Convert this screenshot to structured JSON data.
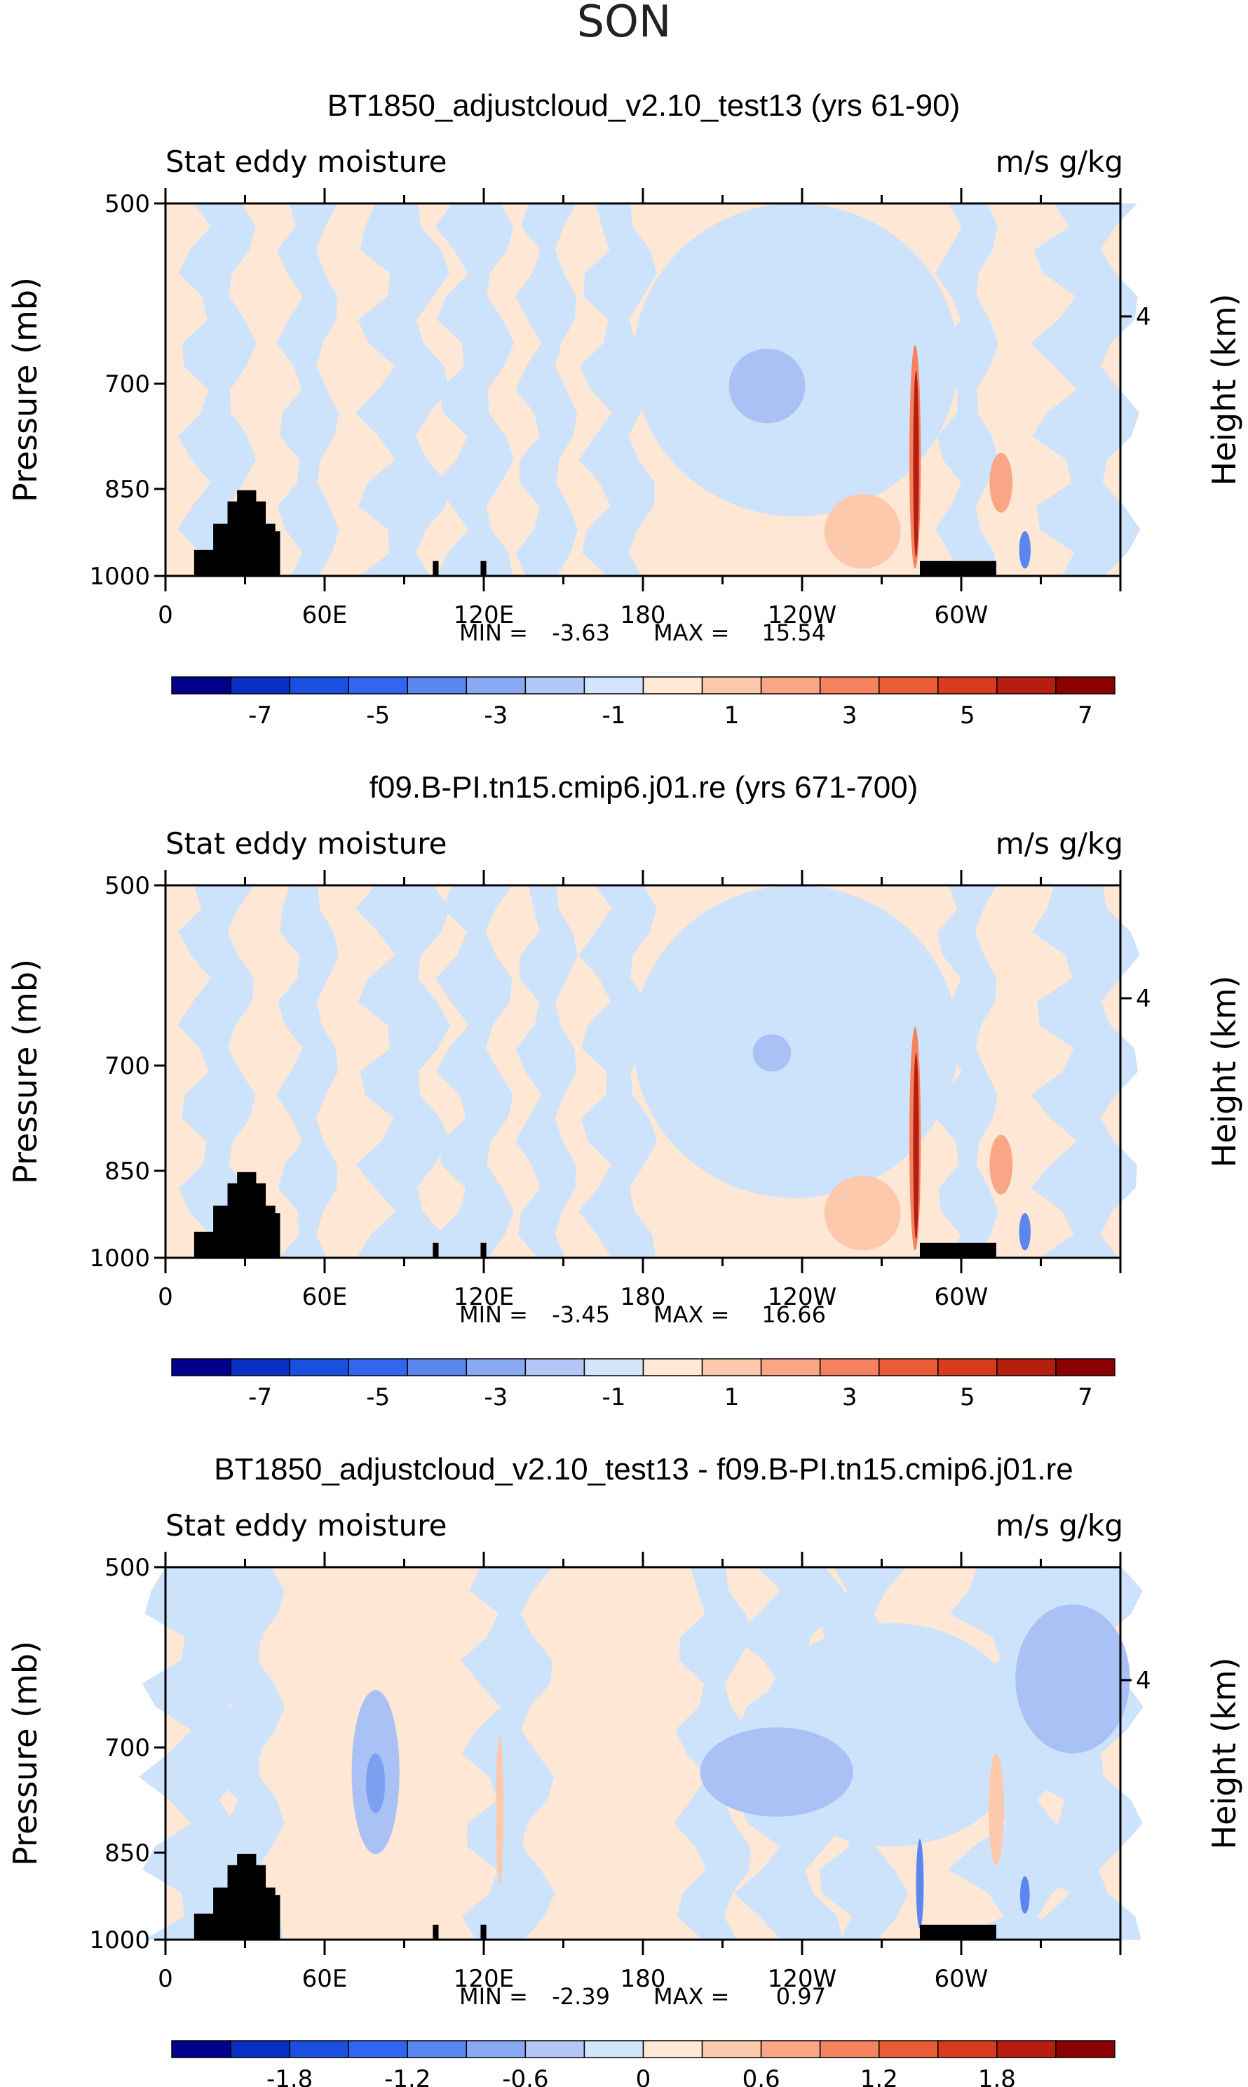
{
  "main_title": "SON",
  "colors": {
    "ocean": "#cde3fb",
    "land": "#ffe7d5",
    "terrain": "#000000",
    "frame": "#000000"
  },
  "chart_data": [
    {
      "type": "contour",
      "title": "BT1850_adjustcloud_v2.10_test13 (yrs 61-90)",
      "variable": "Stat eddy moisture",
      "units": "m/s g/kg",
      "ylabel": "Pressure (mb)",
      "ylabel_right": "Height (km)",
      "yticks": [
        "500",
        "700",
        "850",
        "1000"
      ],
      "yticks_right": [
        "4"
      ],
      "xticks": [
        "0",
        "60E",
        "120E",
        "180",
        "120W",
        "60W"
      ],
      "stats": {
        "min_label": "MIN =",
        "min": "-3.63",
        "max_label": "MAX =",
        "max": "15.54"
      },
      "colorbar": {
        "labels": [
          "-7",
          "-5",
          "-3",
          "-1",
          "1",
          "3",
          "5",
          "7"
        ],
        "colors": [
          "#00008b",
          "#0a2fc4",
          "#1a4fe0",
          "#3366ee",
          "#5a86ee",
          "#89a9f2",
          "#b3c8f7",
          "#d3e5fb",
          "#ffe8d6",
          "#fdc9ad",
          "#f9a686",
          "#f4825e",
          "#ea5c36",
          "#d83a1e",
          "#b51e10",
          "#8b0000"
        ]
      }
    },
    {
      "type": "contour",
      "title": "f09.B-PI.tn15.cmip6.j01.re (yrs 671-700)",
      "variable": "Stat eddy moisture",
      "units": "m/s g/kg",
      "ylabel": "Pressure (mb)",
      "ylabel_right": "Height (km)",
      "yticks": [
        "500",
        "700",
        "850",
        "1000"
      ],
      "yticks_right": [
        "4"
      ],
      "xticks": [
        "0",
        "60E",
        "120E",
        "180",
        "120W",
        "60W"
      ],
      "stats": {
        "min_label": "MIN =",
        "min": "-3.45",
        "max_label": "MAX =",
        "max": "16.66"
      },
      "colorbar": {
        "labels": [
          "-7",
          "-5",
          "-3",
          "-1",
          "1",
          "3",
          "5",
          "7"
        ],
        "colors": [
          "#00008b",
          "#0a2fc4",
          "#1a4fe0",
          "#3366ee",
          "#5a86ee",
          "#89a9f2",
          "#b3c8f7",
          "#d3e5fb",
          "#ffe8d6",
          "#fdc9ad",
          "#f9a686",
          "#f4825e",
          "#ea5c36",
          "#d83a1e",
          "#b51e10",
          "#8b0000"
        ]
      }
    },
    {
      "type": "contour",
      "title": "BT1850_adjustcloud_v2.10_test13 - f09.B-PI.tn15.cmip6.j01.re",
      "variable": "Stat eddy moisture",
      "units": "m/s g/kg",
      "ylabel": "Pressure (mb)",
      "ylabel_right": "Height (km)",
      "yticks": [
        "500",
        "700",
        "850",
        "1000"
      ],
      "yticks_right": [
        "4"
      ],
      "xticks": [
        "0",
        "60E",
        "120E",
        "180",
        "120W",
        "60W"
      ],
      "stats": {
        "min_label": "MIN =",
        "min": "-2.39",
        "max_label": "MAX =",
        "max": "0.97"
      },
      "colorbar": {
        "labels": [
          "-1.8",
          "-1.2",
          "-0.6",
          "0",
          "0.6",
          "1.2",
          "1.8"
        ],
        "colors": [
          "#00008b",
          "#0a2fc4",
          "#1a4fe0",
          "#3366ee",
          "#5a86ee",
          "#89a9f2",
          "#b3c8f7",
          "#d3e5fb",
          "#ffe8d6",
          "#fdc9ad",
          "#f9a686",
          "#f4825e",
          "#ea5c36",
          "#d83a1e",
          "#b51e10",
          "#8b0000"
        ]
      }
    }
  ]
}
